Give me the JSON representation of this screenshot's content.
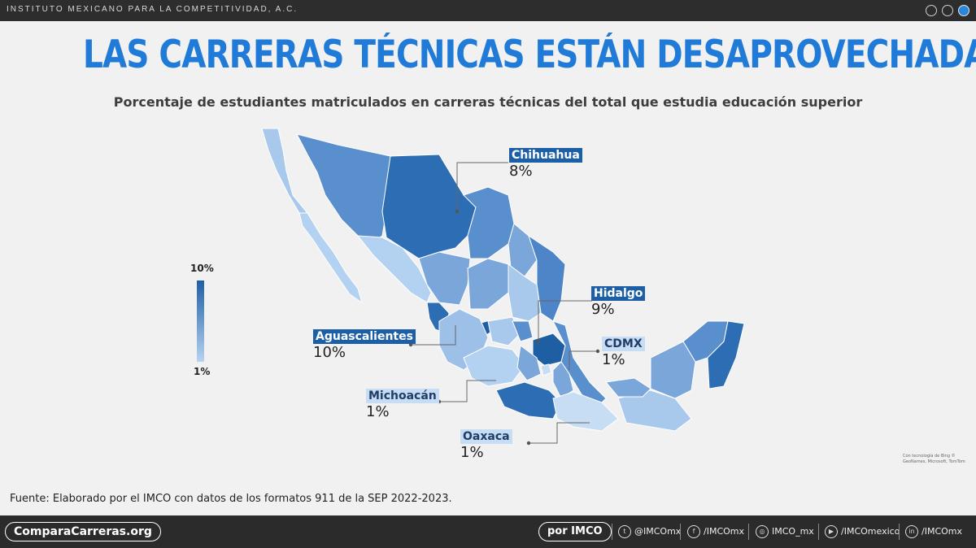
{
  "header": {
    "org": "INSTITUTO MEXICANO PARA LA COMPETITIVIDAD, A.C."
  },
  "title": "LAS CARRERAS TÉCNICAS ESTÁN DESAPROVECHADAS",
  "subtitle": "Porcentaje de estudiantes matriculados en carreras técnicas del total que estudia educación superior",
  "legend": {
    "max": "10%",
    "min": "1%",
    "max_color": "#1e5fa4",
    "min_color": "#b7d3f2"
  },
  "callouts": {
    "chihuahua": {
      "name": "Chihuahua",
      "value": "8%"
    },
    "hidalgo": {
      "name": "Hidalgo",
      "value": "9%"
    },
    "aguascalientes": {
      "name": "Aguascalientes",
      "value": "10%"
    },
    "cdmx": {
      "name": "CDMX",
      "value": "1%"
    },
    "michoacan": {
      "name": "Michoacán",
      "value": "1%"
    },
    "oaxaca": {
      "name": "Oaxaca",
      "value": "1%"
    }
  },
  "map_credit": "Con tecnología de Bing © GeoNames, Microsoft, TomTom",
  "source": "Fuente: Elaborado por el IMCO con datos de los formatos 911 de la SEP 2022-2023.",
  "footer": {
    "site": "ComparaCarreras.org",
    "by": "por IMCO",
    "socials": [
      {
        "icon": "twitter-icon",
        "glyph": "t",
        "handle": "@IMCOmx"
      },
      {
        "icon": "facebook-icon",
        "glyph": "f",
        "handle": "/IMCOmx"
      },
      {
        "icon": "instagram-icon",
        "glyph": "◎",
        "handle": "IMCO_mx"
      },
      {
        "icon": "youtube-icon",
        "glyph": "▶",
        "handle": "/IMCOmexico"
      },
      {
        "icon": "linkedin-icon",
        "glyph": "in",
        "handle": "/IMCOmx"
      }
    ]
  },
  "colors": {
    "accent": "#1f7ad8",
    "dark_state": "#2166ac",
    "light_state": "#b7d3f2"
  }
}
